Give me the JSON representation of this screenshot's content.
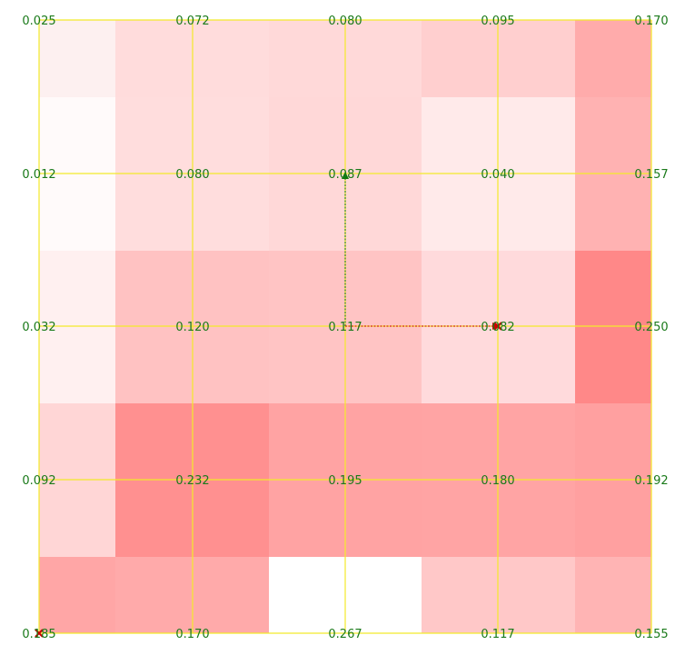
{
  "chart_data": {
    "type": "heatmap",
    "title": "",
    "xlabel": "",
    "ylabel": "",
    "grid": true,
    "cell_values_note_source": "values printed at grid intersections",
    "grid_values": [
      [
        "0.025",
        "0.072",
        "0.080",
        "0.095",
        "0.170"
      ],
      [
        "0.012",
        "0.080",
        "0.087",
        "0.040",
        "0.157"
      ],
      [
        "0.032",
        "0.120",
        "0.117",
        "0.082",
        "0.250"
      ],
      [
        "0.092",
        "0.232",
        "0.195",
        "0.180",
        "0.192"
      ],
      [
        "0.185",
        "0.170",
        "0.267",
        "0.117",
        "0.155"
      ]
    ],
    "cell_fill_colors": [
      [
        "#fdf0f0",
        "#ffdcdc",
        "#ffd9d9",
        "#ffcfcf",
        "#ffabab"
      ],
      [
        "#fffafa",
        "#ffdddd",
        "#ffd8d8",
        "#ffeaea",
        "#ffb2b2"
      ],
      [
        "#fff0f0",
        "#ffc2c2",
        "#ffc4c4",
        "#ffdadc",
        "#ff8888"
      ],
      [
        "#ffd6d6",
        "#ff9090",
        "#ffa3a3",
        "#ffa4a4",
        "#ffa0a0"
      ],
      [
        "#ffa6a6",
        "#ffaaaa",
        "#ffffff",
        "#ffc8c8",
        "#ffb4b4"
      ]
    ],
    "arrows": [
      {
        "from": [
          2,
          2
        ],
        "to": [
          2,
          1
        ],
        "color": "#0a7a0a"
      },
      {
        "from": [
          2,
          2
        ],
        "to": [
          3,
          2
        ],
        "color": "#cc0000"
      }
    ],
    "markers": [
      {
        "at": [
          0,
          4
        ],
        "symbol": "x",
        "color": "#cc0000"
      },
      {
        "at": [
          3,
          2
        ],
        "symbol": "x",
        "color": "#cc0000"
      }
    ],
    "colors": {
      "grid_line": "#f2ea2a",
      "label_text": "#1a7a1a"
    }
  }
}
